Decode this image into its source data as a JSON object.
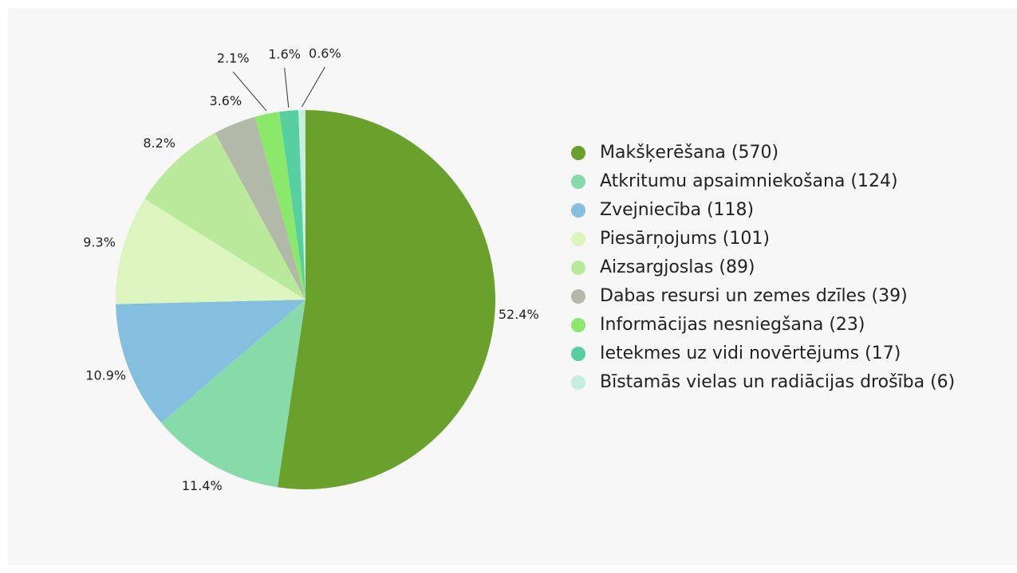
{
  "chart_data": {
    "type": "pie",
    "categories": [
      "Makšķerēšana (570)",
      "Atkritumu apsaimniekošana (124)",
      "Zvejniecība (118)",
      "Piesārņojums (101)",
      "Aizsargjoslas (89)",
      "Dabas resursi un zemes dzīles (39)",
      "Informācijas nesniegšana (23)",
      "Ietekmes uz vidi novērtējums (17)",
      "Bīstamās vielas un radiācijas drošība (6)"
    ],
    "values": [
      52.4,
      11.4,
      10.9,
      9.3,
      8.2,
      3.6,
      2.1,
      1.6,
      0.6
    ],
    "value_labels": [
      "52.4%",
      "11.4%",
      "10.9%",
      "9.3%",
      "8.2%",
      "3.6%",
      "2.1%",
      "1.6%",
      "0.6%"
    ],
    "colors": [
      "#6aa02c",
      "#86dba8",
      "#85bfe0",
      "#dcf5bf",
      "#b9e99a",
      "#b3b9a8",
      "#8be86a",
      "#57cfa0",
      "#c6eee0"
    ],
    "legend": "right"
  }
}
